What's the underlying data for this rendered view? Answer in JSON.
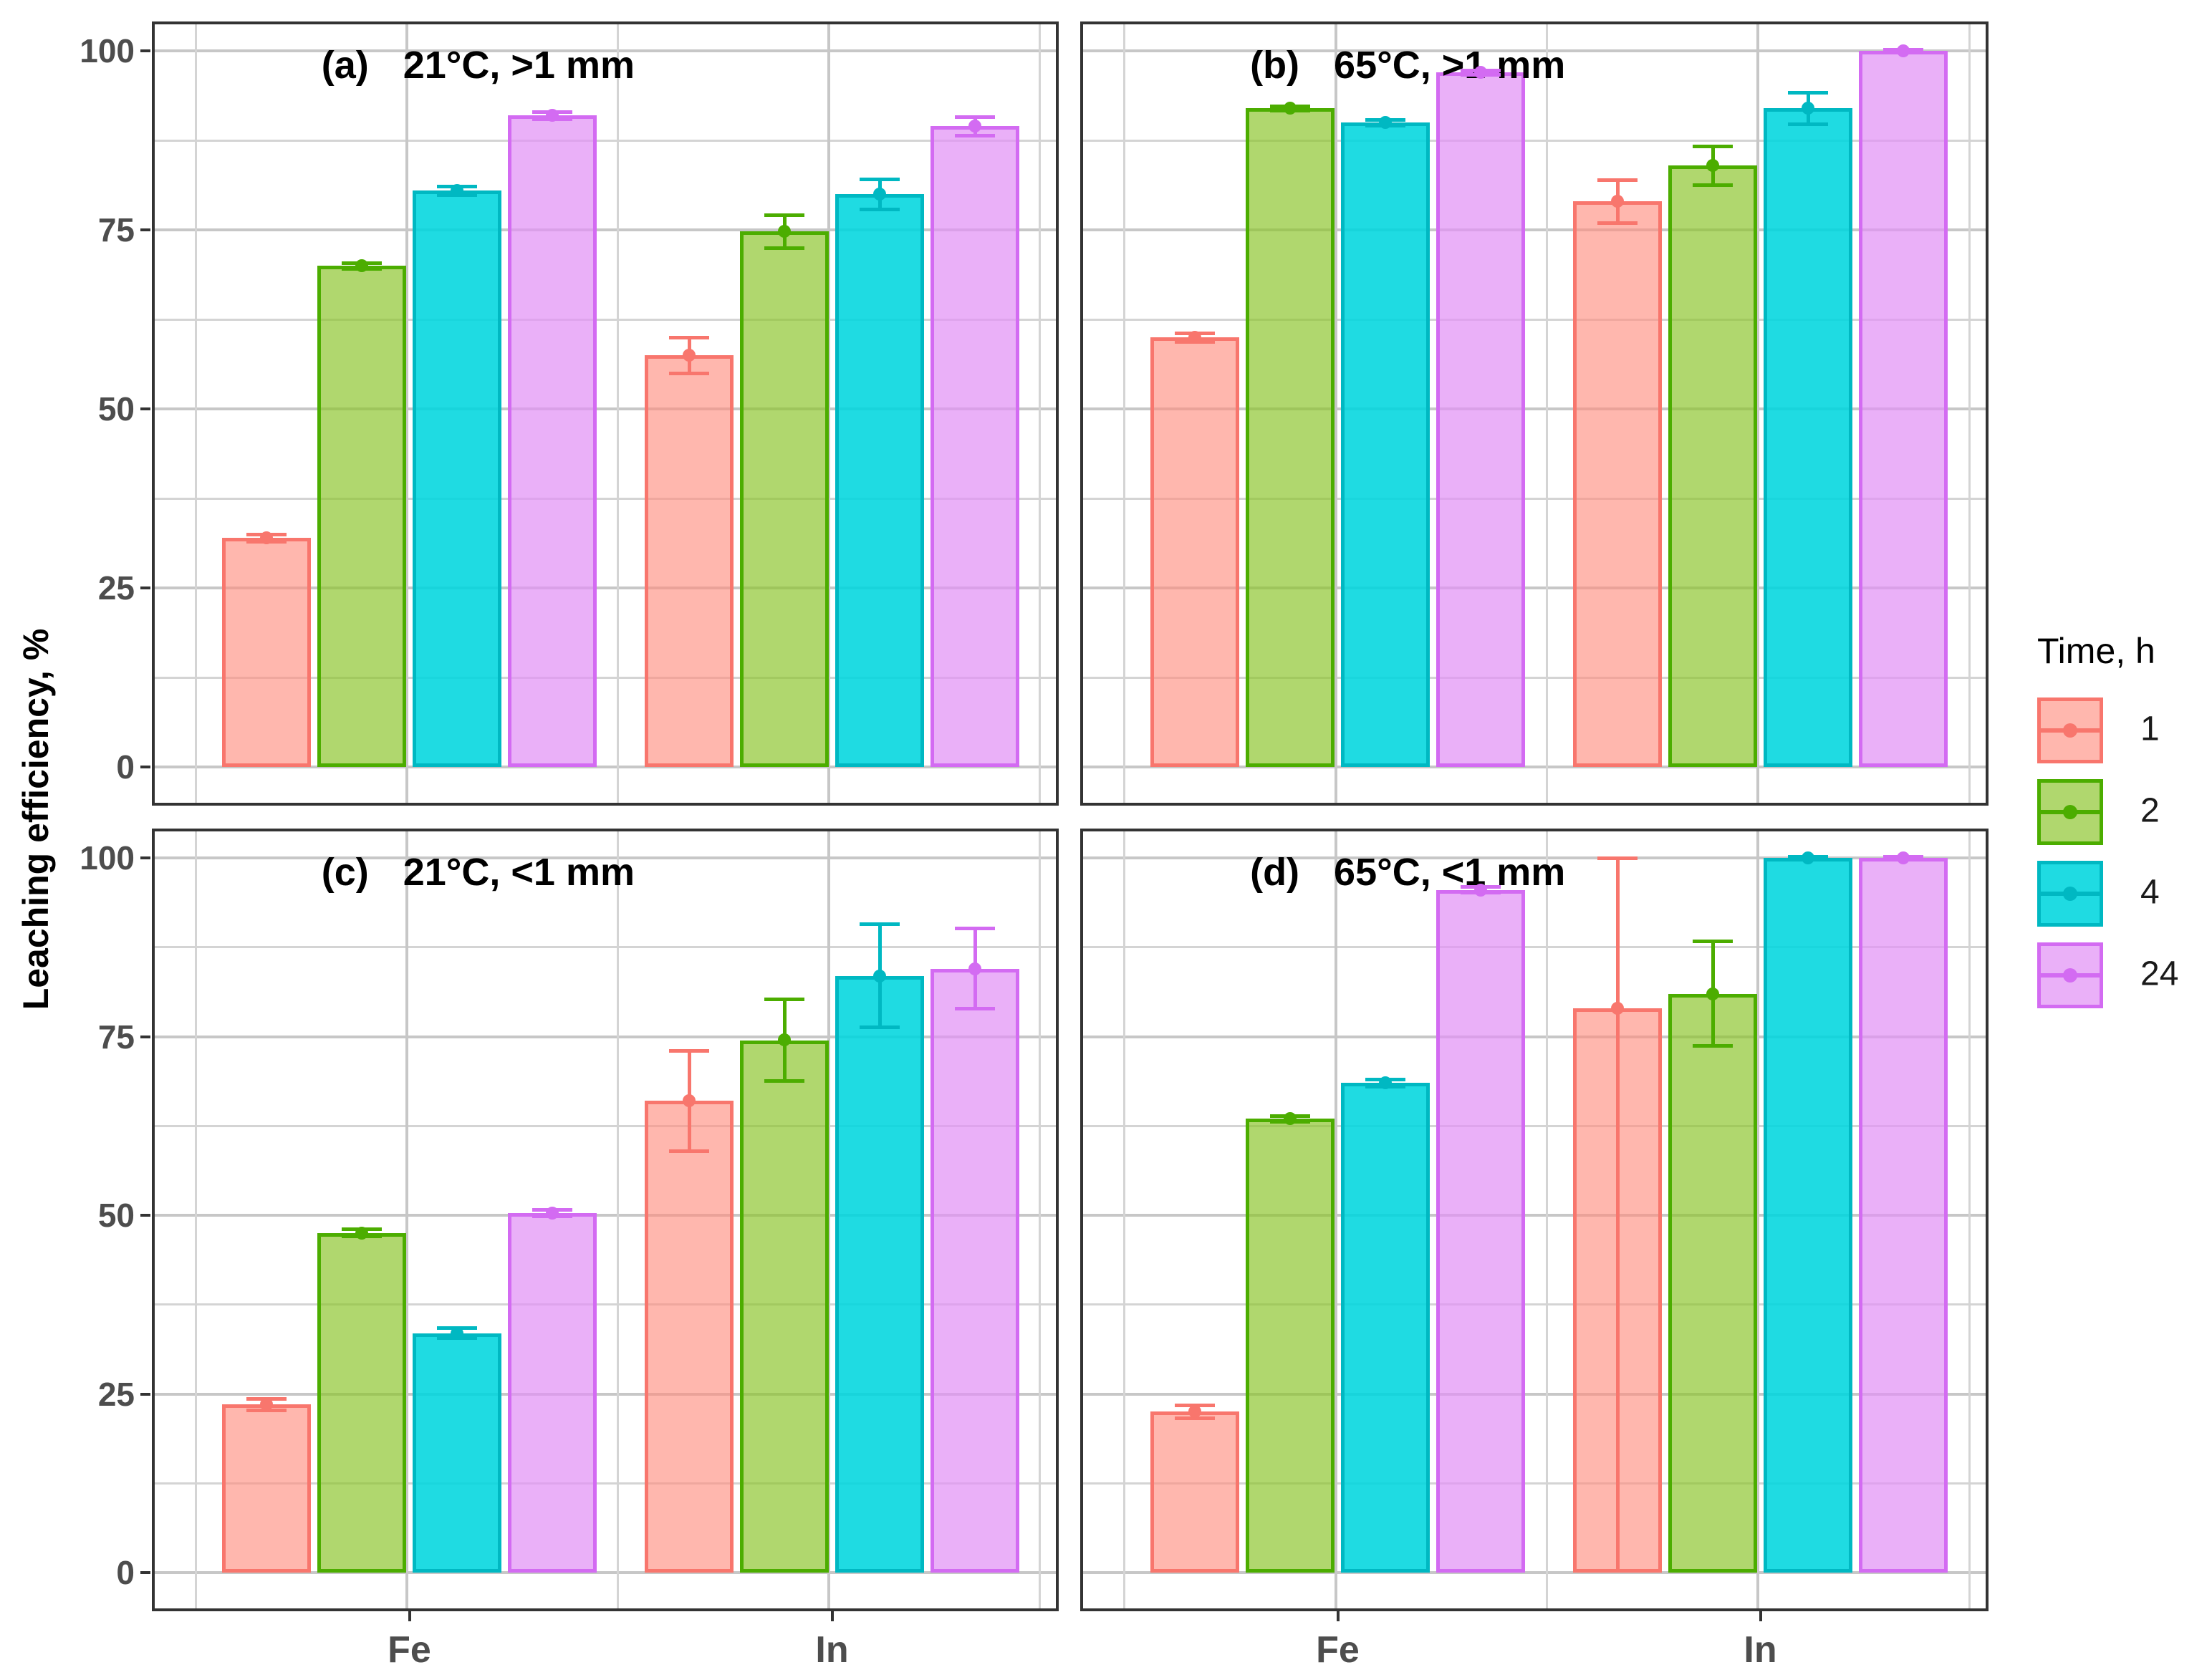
{
  "figure_title": "",
  "axes": {
    "y_title": "Leaching efficiency, %",
    "y_ticks": [
      0,
      25,
      50,
      75,
      100
    ],
    "y_minor_ticks": [
      12.5,
      37.5,
      62.5,
      87.5
    ],
    "x_categories": [
      "Fe",
      "In"
    ]
  },
  "legend": {
    "title": "Time, h",
    "items": [
      {
        "label": "1"
      },
      {
        "label": "2"
      },
      {
        "label": "4"
      },
      {
        "label": "24"
      }
    ]
  },
  "colors": {
    "panel_border": "#333333",
    "grid_major": "#c7c7c7",
    "grid_minor": "#d4d4d4",
    "tick_text": "#4d4d4d",
    "facet_text": "#000000"
  },
  "chart_data": {
    "type": "bar",
    "ylabel": "Leaching efficiency, %",
    "ylim": [
      0,
      100
    ],
    "grid": "major+minor",
    "legend_position": "right",
    "legend_title": "Time, h",
    "categories": [
      "Fe",
      "In"
    ],
    "series": [
      {
        "name": "1",
        "stroke": "#F8766D",
        "fill_rgba": "rgba(255,138,125,0.62)"
      },
      {
        "name": "2",
        "stroke": "#4CAD00",
        "fill_rgba": "rgba(138,196,42,0.68)"
      },
      {
        "name": "4",
        "stroke": "#00B8C2",
        "fill_rgba": "rgba(0,214,222,0.88)"
      },
      {
        "name": "24",
        "stroke": "#D36BF2",
        "fill_rgba": "rgba(226,146,245,0.72)"
      }
    ],
    "facets": [
      {
        "tag": "(a)",
        "condition": "21°C, >1 mm",
        "groups": [
          {
            "category": "Fe",
            "bars": [
              {
                "time": "1",
                "value": 32,
                "err": 0.5
              },
              {
                "time": "2",
                "value": 70,
                "err": 0.4
              },
              {
                "time": "4",
                "value": 80.5,
                "err": 0.6
              },
              {
                "time": "24",
                "value": 91,
                "err": 0.5
              }
            ]
          },
          {
            "category": "In",
            "bars": [
              {
                "time": "1",
                "value": 57.5,
                "err": 2.5
              },
              {
                "time": "2",
                "value": 74.8,
                "err": 2.3
              },
              {
                "time": "4",
                "value": 80,
                "err": 2.1
              },
              {
                "time": "24",
                "value": 89.5,
                "err": 1.3
              }
            ]
          }
        ]
      },
      {
        "tag": "(b)",
        "condition": "65°C, >1 mm",
        "groups": [
          {
            "category": "Fe",
            "bars": [
              {
                "time": "1",
                "value": 60,
                "err": 0.6
              },
              {
                "time": "2",
                "value": 92,
                "err": 0.3
              },
              {
                "time": "4",
                "value": 90,
                "err": 0.4
              },
              {
                "time": "24",
                "value": 97,
                "err": 0.3
              }
            ]
          },
          {
            "category": "In",
            "bars": [
              {
                "time": "1",
                "value": 79,
                "err": 3.0
              },
              {
                "time": "2",
                "value": 84,
                "err": 2.7
              },
              {
                "time": "4",
                "value": 92,
                "err": 2.2
              },
              {
                "time": "24",
                "value": 100,
                "err": 0.2
              }
            ]
          }
        ]
      },
      {
        "tag": "(c)",
        "condition": "21°C, <1 mm",
        "groups": [
          {
            "category": "Fe",
            "bars": [
              {
                "time": "1",
                "value": 23.5,
                "err": 0.8
              },
              {
                "time": "2",
                "value": 47.5,
                "err": 0.5
              },
              {
                "time": "4",
                "value": 33.5,
                "err": 0.7
              },
              {
                "time": "24",
                "value": 50.3,
                "err": 0.5
              }
            ]
          },
          {
            "category": "In",
            "bars": [
              {
                "time": "1",
                "value": 66,
                "err": 7.0
              },
              {
                "time": "2",
                "value": 74.5,
                "err": 5.7
              },
              {
                "time": "4",
                "value": 83.5,
                "err": 7.2
              },
              {
                "time": "24",
                "value": 84.5,
                "err": 5.6
              }
            ]
          }
        ]
      },
      {
        "tag": "(d)",
        "condition": "65°C, <1 mm",
        "groups": [
          {
            "category": "Fe",
            "bars": [
              {
                "time": "1",
                "value": 22.5,
                "err": 0.9
              },
              {
                "time": "2",
                "value": 63.5,
                "err": 0.4
              },
              {
                "time": "4",
                "value": 68.5,
                "err": 0.5
              },
              {
                "time": "24",
                "value": 95.5,
                "err": 0.4
              }
            ]
          },
          {
            "category": "In",
            "bars": [
              {
                "time": "1",
                "value": 79,
                "err_up": 21,
                "err_down": 79,
                "cap_down": false
              },
              {
                "time": "2",
                "value": 81,
                "err": 7.3
              },
              {
                "time": "4",
                "value": 100,
                "err": 0.15
              },
              {
                "time": "24",
                "value": 100,
                "err": 0.15
              }
            ]
          }
        ]
      }
    ]
  }
}
